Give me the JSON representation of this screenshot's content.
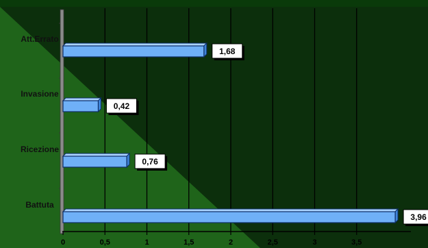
{
  "chart_data": {
    "type": "bar",
    "orientation": "horizontal",
    "categories": [
      "Att.Errato",
      "Invasione",
      "Ricezione",
      "Battuta"
    ],
    "values": [
      1.68,
      0.42,
      0.76,
      3.96
    ],
    "data_labels": [
      "1,68",
      "0,42",
      "0,76",
      "3,96"
    ],
    "x_ticks": [
      0,
      0.5,
      1,
      1.5,
      2,
      2.5,
      3,
      3.5
    ],
    "x_tick_labels": [
      "0",
      "0,5",
      "1",
      "1,5",
      "2",
      "2,5",
      "3",
      "3,5"
    ],
    "xlim": [
      0,
      4
    ],
    "grid": true,
    "legend": "none",
    "title": "",
    "xlabel": "",
    "ylabel": ""
  },
  "colors": {
    "bar_fill": "#6fb0f7",
    "bar_top": "#a9d2ff",
    "bar_side": "#3f84d8",
    "bar_stroke": "#0d2d66",
    "background_dark": "#0c2f0c",
    "background_light": "#1f641a",
    "background_top": "#0a3a0a",
    "gridline": "#000000",
    "label_box": "#ffffff"
  }
}
